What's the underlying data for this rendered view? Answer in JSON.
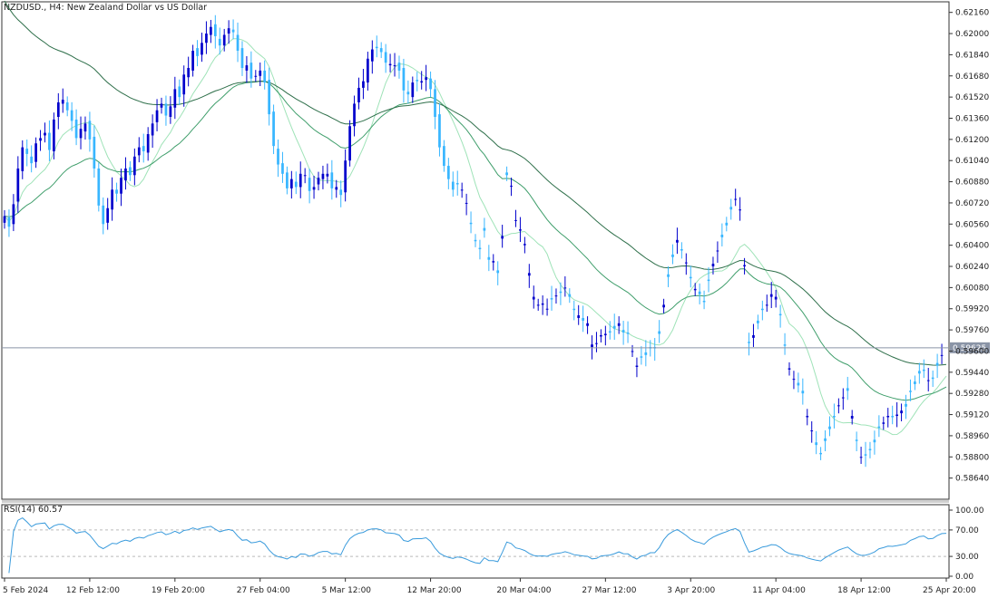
{
  "header": {
    "symbol": "NZDUSD.,",
    "timeframe": "H4:",
    "description": "New Zealand Dollar vs US Dollar"
  },
  "rsi_panel": {
    "label": "RSI(14)",
    "value": "60.57"
  },
  "current_price_label": "0.59625",
  "colors": {
    "bull": "#0000cc",
    "bear": "#38b6ff",
    "ma_fast": "#9fe3b8",
    "ma_mid": "#3f9e6b",
    "ma_slow": "#2e6f4a",
    "rsi_line": "#3a9bdc",
    "price_line": "#8a94a6"
  },
  "chart_data": [
    {
      "type": "candlestick",
      "title": "NZDUSD., H4: New Zealand Dollar vs US Dollar",
      "ylim": [
        0.5848,
        0.6224
      ],
      "y_ticks": [
        "0.62160",
        "0.62000",
        "0.61840",
        "0.61680",
        "0.61520",
        "0.61360",
        "0.61200",
        "0.61040",
        "0.60880",
        "0.60720",
        "0.60560",
        "0.60400",
        "0.60240",
        "0.60080",
        "0.59920",
        "0.59760",
        "0.59600",
        "0.59440",
        "0.59280",
        "0.59120",
        "0.58960",
        "0.58800",
        "0.58640"
      ],
      "y_tick_values": [
        0.6216,
        0.62,
        0.6184,
        0.6168,
        0.6152,
        0.6136,
        0.612,
        0.6104,
        0.6088,
        0.6072,
        0.6056,
        0.604,
        0.6024,
        0.6008,
        0.5992,
        0.5976,
        0.596,
        0.5944,
        0.5928,
        0.5912,
        0.5896,
        0.588,
        0.5864
      ],
      "x_ticks": [
        "5 Feb 2024",
        "12 Feb 12:00",
        "19 Feb 20:00",
        "27 Feb 04:00",
        "5 Mar 12:00",
        "12 Mar 20:00",
        "20 Mar 04:00",
        "27 Mar 12:00",
        "3 Apr 20:00",
        "11 Apr 04:00",
        "18 Apr 12:00",
        "25 Apr 20:00"
      ],
      "x_tick_bar_index": [
        0,
        44,
        88,
        132,
        176,
        220,
        264,
        308,
        352,
        396,
        440,
        484
      ],
      "current_price": 0.59625,
      "closes": [
        0.6062,
        0.6054,
        0.6071,
        0.6098,
        0.6114,
        0.6109,
        0.6102,
        0.6117,
        0.6121,
        0.6125,
        0.6112,
        0.6135,
        0.6148,
        0.615,
        0.6142,
        0.6134,
        0.6121,
        0.6128,
        0.6132,
        0.612,
        0.6098,
        0.607,
        0.6056,
        0.6068,
        0.6082,
        0.6079,
        0.6091,
        0.6098,
        0.6093,
        0.6107,
        0.6114,
        0.6111,
        0.6124,
        0.6132,
        0.6142,
        0.6147,
        0.6138,
        0.6145,
        0.6158,
        0.6152,
        0.6169,
        0.6174,
        0.6187,
        0.6183,
        0.6193,
        0.62,
        0.6205,
        0.6198,
        0.6191,
        0.6199,
        0.6204,
        0.6201,
        0.6187,
        0.6174,
        0.6176,
        0.6166,
        0.6168,
        0.6172,
        0.6163,
        0.6139,
        0.6115,
        0.6101,
        0.6094,
        0.6083,
        0.609,
        0.6084,
        0.6094,
        0.6093,
        0.6081,
        0.6084,
        0.6091,
        0.6094,
        0.6094,
        0.6083,
        0.6084,
        0.6078,
        0.6104,
        0.613,
        0.6147,
        0.6159,
        0.6164,
        0.6181,
        0.6188,
        0.6189,
        0.6186,
        0.6178,
        0.6177,
        0.6176,
        0.6172,
        0.6157,
        0.6154,
        0.6163,
        0.6164,
        0.6164,
        0.6167,
        0.6158,
        0.6137,
        0.6114,
        0.61,
        0.609,
        0.6082,
        0.6086,
        0.6082,
        0.6072,
        0.6056,
        0.6043,
        0.6037,
        0.6051,
        0.6029,
        0.6028,
        0.6019,
        0.6047,
        0.6093,
        0.6085,
        0.6059,
        0.6052,
        0.6041,
        0.6019,
        0.6001,
        0.5995,
        0.5996,
        0.5992,
        0.5999,
        0.6002,
        0.6004,
        0.6008,
        0.6001,
        0.5991,
        0.5987,
        0.5983,
        0.5981,
        0.5965,
        0.5966,
        0.5972,
        0.5973,
        0.5974,
        0.5977,
        0.5981,
        0.5974,
        0.5973,
        0.596,
        0.5949,
        0.5955,
        0.5957,
        0.5962,
        0.5962,
        0.5973,
        0.5995,
        0.6016,
        0.6031,
        0.6044,
        0.6036,
        0.6027,
        0.6015,
        0.6007,
        0.6003,
        0.5997,
        0.6013,
        0.6026,
        0.6036,
        0.6046,
        0.6055,
        0.6067,
        0.6075,
        0.6067,
        0.6025,
        0.5966,
        0.5972,
        0.5981,
        0.5991,
        0.5995,
        0.6003,
        0.6001,
        0.5987,
        0.5964,
        0.5947,
        0.5939,
        0.5934,
        0.5928,
        0.5911,
        0.59,
        0.5889,
        0.5882,
        0.5892,
        0.5901,
        0.591,
        0.5919,
        0.5925,
        0.593,
        0.5911,
        0.5892,
        0.588,
        0.5881,
        0.5885,
        0.5891,
        0.5902,
        0.5906,
        0.5911,
        0.591,
        0.5912,
        0.5915,
        0.5918,
        0.5929,
        0.5935,
        0.5943,
        0.5945,
        0.5938,
        0.5939,
        0.5949,
        0.5957,
        0.5958
      ],
      "opens": [
        0.6057,
        0.6061,
        0.6056,
        0.6073,
        0.6096,
        0.6113,
        0.6107,
        0.6103,
        0.6119,
        0.6123,
        0.6125,
        0.6111,
        0.6137,
        0.6147,
        0.6148,
        0.6142,
        0.6135,
        0.6121,
        0.6126,
        0.6134,
        0.6122,
        0.6098,
        0.607,
        0.6057,
        0.6067,
        0.6082,
        0.6079,
        0.6089,
        0.6099,
        0.6093,
        0.6108,
        0.6115,
        0.611,
        0.6123,
        0.6133,
        0.6144,
        0.6147,
        0.6137,
        0.6144,
        0.616,
        0.6154,
        0.6167,
        0.6172,
        0.6189,
        0.6184,
        0.6193,
        0.6199,
        0.6207,
        0.6196,
        0.6191,
        0.62,
        0.6203,
        0.6199,
        0.6189,
        0.6172,
        0.6178,
        0.6168,
        0.6168,
        0.6172,
        0.6165,
        0.6141,
        0.6113,
        0.6102,
        0.6095,
        0.6083,
        0.6088,
        0.6084,
        0.6093,
        0.6091,
        0.6082,
        0.6086,
        0.609,
        0.6092,
        0.6095,
        0.6082,
        0.6082,
        0.608,
        0.6104,
        0.613,
        0.6148,
        0.6159,
        0.6163,
        0.6179,
        0.619,
        0.6189,
        0.6186,
        0.6176,
        0.6176,
        0.6178,
        0.6174,
        0.6156,
        0.6152,
        0.6165,
        0.6163,
        0.6165,
        0.6166,
        0.6158,
        0.6139,
        0.6115,
        0.61,
        0.6088,
        0.6087,
        0.6082,
        0.6072,
        0.6057,
        0.6044,
        0.6038,
        0.6053,
        0.6031,
        0.6027,
        0.6021,
        0.6045,
        0.6095,
        0.6085,
        0.6059,
        0.6051,
        0.604,
        0.6017,
        0.5999,
        0.5995,
        0.5995,
        0.5992,
        0.6,
        0.6002,
        0.6005,
        0.6008,
        0.6003,
        0.5992,
        0.5985,
        0.5985,
        0.5979,
        0.5963,
        0.5966,
        0.5971,
        0.5972,
        0.5975,
        0.5979,
        0.5979,
        0.5976,
        0.5974,
        0.596,
        0.5948,
        0.5956,
        0.5959,
        0.5963,
        0.5963,
        0.5975,
        0.5993,
        0.6018,
        0.6033,
        0.6042,
        0.6037,
        0.6027,
        0.6016,
        0.6006,
        0.6005,
        0.5998,
        0.6014,
        0.6024,
        0.6036,
        0.6048,
        0.6057,
        0.6069,
        0.6075,
        0.6067,
        0.6024,
        0.5967,
        0.597,
        0.5983,
        0.5992,
        0.5995,
        0.6001,
        0.5999,
        0.5988,
        0.5965,
        0.5946,
        0.5939,
        0.5936,
        0.593,
        0.591,
        0.59,
        0.5891,
        0.5883,
        0.5894,
        0.5903,
        0.5911,
        0.5919,
        0.5925,
        0.5932,
        0.5909,
        0.5893,
        0.588,
        0.5882,
        0.5886,
        0.5893,
        0.5903,
        0.5905,
        0.591,
        0.5911,
        0.5911,
        0.5913,
        0.592,
        0.593,
        0.5937,
        0.5945,
        0.5946,
        0.5938,
        0.594,
        0.5951,
        0.5957
      ],
      "indicators": [
        "SMA fast",
        "SMA mid",
        "SMA slow"
      ]
    },
    {
      "type": "line",
      "title": "RSI(14) 60.57",
      "ylim": [
        0,
        100
      ],
      "y_ticks": [
        "100.00",
        "70.00",
        "30.00",
        "0.00"
      ],
      "y_tick_values": [
        100,
        70,
        30,
        0
      ],
      "levels": [
        70,
        30
      ],
      "last_value": 60.57
    }
  ]
}
